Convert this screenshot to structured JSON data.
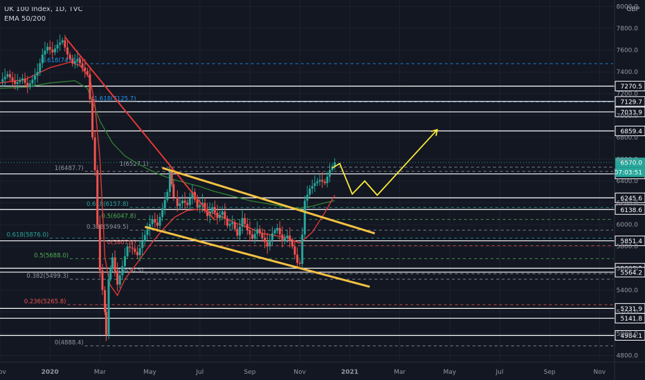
{
  "header": {
    "symbol_line": "UK 100 Index, 1D, TVC",
    "indicator_line": "EMA 50/200",
    "currency": "GBP"
  },
  "chart_data": {
    "type": "candlestick",
    "title": "UK 100 Index, 1D, TVC",
    "indicator": "EMA 50/200",
    "ylim": [
      4700,
      8100
    ],
    "grid": true,
    "y_ticks": [
      4800,
      5000,
      5200,
      5400,
      5600,
      5800,
      6000,
      6200,
      6400,
      6600,
      6800,
      7000,
      7200,
      7400,
      7600,
      7800,
      8000
    ],
    "x_ticks": [
      {
        "label": "Nov",
        "x": 0
      },
      {
        "label": "2020",
        "x": 2
      },
      {
        "label": "Mar",
        "x": 4
      },
      {
        "label": "May",
        "x": 6
      },
      {
        "label": "Jul",
        "x": 8
      },
      {
        "label": "Sep",
        "x": 10
      },
      {
        "label": "Nov",
        "x": 12
      },
      {
        "label": "2021",
        "x": 14
      },
      {
        "label": "Mar",
        "x": 16
      },
      {
        "label": "May",
        "x": 18
      },
      {
        "label": "Jul",
        "x": 20
      },
      {
        "label": "Sep",
        "x": 22
      },
      {
        "label": "Nov",
        "x": 24
      }
    ],
    "price_label_current": {
      "value": "6570.0",
      "color": "#26a69a"
    },
    "countdown_label": {
      "value": "07:03:51",
      "color": "#26a69a"
    },
    "horizontal_levels": [
      {
        "value": 7270.5,
        "label": "7270.5"
      },
      {
        "value": 7129.7,
        "label": "7129.7"
      },
      {
        "value": 7033.9,
        "label": "7033.9"
      },
      {
        "value": 6859.4,
        "label": "6859.4"
      },
      {
        "value": 6465.2,
        "label": "6465.2"
      },
      {
        "value": 6245.6,
        "label": "6245.6"
      },
      {
        "value": 6138.6,
        "label": "6138.6"
      },
      {
        "value": 5851.4,
        "label": "5851.4"
      },
      {
        "value": 5600.3,
        "label": "5600.3"
      },
      {
        "value": 5564.2,
        "label": "5564.2"
      },
      {
        "value": 5231.9,
        "label": "5231.9"
      },
      {
        "value": 5141.8,
        "label": "5141.8"
      },
      {
        "value": 4984.1,
        "label": "4984.1"
      }
    ],
    "fib_levels": [
      {
        "label": "1.618(7476.1)",
        "value": 7476.1,
        "color": "#2196f3",
        "x_start": 3.4
      },
      {
        "label": "1.618(7125.7)",
        "value": 7125.7,
        "color": "#2196f3",
        "x_start": 5.5
      },
      {
        "label": "1(6527.1)",
        "value": 6527.1,
        "color": "#9598a1",
        "x_start": 6.0
      },
      {
        "label": "1(6487.7)",
        "value": 6487.7,
        "color": "#9598a1",
        "x_start": 3.4
      },
      {
        "label": "0.618(6157.8)",
        "value": 6157.8,
        "color": "#26a69a",
        "x_start": 5.2
      },
      {
        "label": "0.5(6047.8)",
        "value": 6047.8,
        "color": "#4caf50",
        "x_start": 5.5
      },
      {
        "label": "0.382(5949.5)",
        "value": 5949.5,
        "color": "#9598a1",
        "x_start": 5.2
      },
      {
        "label": "0.618(5876.0)",
        "value": 5876.0,
        "color": "#26a69a",
        "x_start": 2.0
      },
      {
        "label": "0(5807.1)",
        "value": 5807.1,
        "color": "#ef5350",
        "x_start": 5.5
      },
      {
        "label": "0.5(5688.0)",
        "value": 5688.0,
        "color": "#4caf50",
        "x_start": 2.8
      },
      {
        "label": "0(5550.5)",
        "value": 5550.5,
        "color": "#9598a1",
        "x_start": 5.8
      },
      {
        "label": "0.382(5499.3)",
        "value": 5499.3,
        "color": "#9598a1",
        "x_start": 2.8
      },
      {
        "label": "0.236(5265.8)",
        "value": 5265.8,
        "color": "#ef5350",
        "x_start": 2.7
      },
      {
        "label": "0(4888.4)",
        "value": 4888.4,
        "color": "#9598a1",
        "x_start": 3.4
      }
    ],
    "close_series": [
      [
        0.0,
        7310
      ],
      [
        0.3,
        7380
      ],
      [
        0.6,
        7290
      ],
      [
        0.9,
        7340
      ],
      [
        1.1,
        7260
      ],
      [
        1.3,
        7330
      ],
      [
        1.5,
        7400
      ],
      [
        1.7,
        7560
      ],
      [
        1.9,
        7630
      ],
      [
        2.1,
        7580
      ],
      [
        2.3,
        7650
      ],
      [
        2.5,
        7690
      ],
      [
        2.7,
        7560
      ],
      [
        2.9,
        7480
      ],
      [
        3.1,
        7520
      ],
      [
        3.3,
        7440
      ],
      [
        3.5,
        7380
      ],
      [
        3.6,
        7150
      ],
      [
        3.7,
        6800
      ],
      [
        3.8,
        6500
      ],
      [
        3.9,
        6000
      ],
      [
        4.0,
        5580
      ],
      [
        4.1,
        5400
      ],
      [
        4.2,
        5200
      ],
      [
        4.25,
        4990
      ],
      [
        4.35,
        5500
      ],
      [
        4.5,
        5700
      ],
      [
        4.7,
        5450
      ],
      [
        4.9,
        5620
      ],
      [
        5.1,
        5800
      ],
      [
        5.3,
        5780
      ],
      [
        5.5,
        5720
      ],
      [
        5.7,
        5850
      ],
      [
        5.9,
        5960
      ],
      [
        6.1,
        6050
      ],
      [
        6.3,
        5990
      ],
      [
        6.5,
        6150
      ],
      [
        6.7,
        6300
      ],
      [
        6.8,
        6490
      ],
      [
        6.95,
        6250
      ],
      [
        7.1,
        6170
      ],
      [
        7.3,
        6220
      ],
      [
        7.5,
        6180
      ],
      [
        7.7,
        6300
      ],
      [
        7.9,
        6160
      ],
      [
        8.1,
        6200
      ],
      [
        8.3,
        6080
      ],
      [
        8.5,
        6160
      ],
      [
        8.7,
        6060
      ],
      [
        8.9,
        6120
      ],
      [
        9.1,
        5990
      ],
      [
        9.3,
        6020
      ],
      [
        9.5,
        5900
      ],
      [
        9.7,
        6060
      ],
      [
        9.9,
        5950
      ],
      [
        10.1,
        5870
      ],
      [
        10.3,
        5960
      ],
      [
        10.5,
        5880
      ],
      [
        10.7,
        5800
      ],
      [
        10.9,
        5920
      ],
      [
        11.1,
        5970
      ],
      [
        11.3,
        5850
      ],
      [
        11.5,
        5900
      ],
      [
        11.7,
        5800
      ],
      [
        11.9,
        5650
      ],
      [
        12.0,
        5640
      ],
      [
        12.1,
        5910
      ],
      [
        12.2,
        6220
      ],
      [
        12.4,
        6330
      ],
      [
        12.6,
        6380
      ],
      [
        12.8,
        6410
      ],
      [
        13.0,
        6380
      ],
      [
        13.2,
        6500
      ],
      [
        13.4,
        6570
      ]
    ],
    "ema_50": [
      [
        0.0,
        7300
      ],
      [
        1.0,
        7330
      ],
      [
        2.0,
        7440
      ],
      [
        2.8,
        7490
      ],
      [
        3.2,
        7460
      ],
      [
        3.6,
        7340
      ],
      [
        3.8,
        7100
      ],
      [
        4.0,
        6600
      ],
      [
        4.1,
        6150
      ],
      [
        4.2,
        5700
      ],
      [
        4.4,
        5450
      ],
      [
        4.7,
        5350
      ],
      [
        5.0,
        5500
      ],
      [
        5.5,
        5650
      ],
      [
        6.0,
        5810
      ],
      [
        6.5,
        5950
      ],
      [
        7.0,
        6070
      ],
      [
        7.5,
        6130
      ],
      [
        8.0,
        6140
      ],
      [
        8.5,
        6110
      ],
      [
        9.0,
        6060
      ],
      [
        9.5,
        6010
      ],
      [
        10.0,
        5970
      ],
      [
        10.5,
        5920
      ],
      [
        11.0,
        5900
      ],
      [
        11.5,
        5880
      ],
      [
        12.0,
        5830
      ],
      [
        12.5,
        5930
      ],
      [
        13.0,
        6110
      ],
      [
        13.4,
        6270
      ]
    ],
    "ema_200": [
      [
        0.0,
        7250
      ],
      [
        1.0,
        7260
      ],
      [
        2.0,
        7300
      ],
      [
        3.0,
        7320
      ],
      [
        3.5,
        7250
      ],
      [
        4.0,
        6950
      ],
      [
        4.5,
        6750
      ],
      [
        5.0,
        6630
      ],
      [
        5.5,
        6560
      ],
      [
        6.0,
        6500
      ],
      [
        6.5,
        6450
      ],
      [
        7.0,
        6410
      ],
      [
        7.5,
        6380
      ],
      [
        8.0,
        6350
      ],
      [
        8.5,
        6310
      ],
      [
        9.0,
        6280
      ],
      [
        9.5,
        6250
      ],
      [
        10.0,
        6220
      ],
      [
        10.5,
        6200
      ],
      [
        11.0,
        6180
      ],
      [
        11.5,
        6160
      ],
      [
        12.0,
        6150
      ],
      [
        12.5,
        6170
      ],
      [
        13.0,
        6200
      ],
      [
        13.4,
        6220
      ]
    ],
    "downtrend_line": [
      [
        2.6,
        7720
      ],
      [
        8.6,
        6040
      ]
    ],
    "channel_upper": [
      [
        6.5,
        6520
      ],
      [
        15.0,
        5920
      ]
    ],
    "channel_lower": [
      [
        5.8,
        5980
      ],
      [
        14.8,
        5430
      ]
    ],
    "projection_path": [
      [
        13.3,
        6520
      ],
      [
        13.6,
        6560
      ],
      [
        14.1,
        6280
      ],
      [
        14.6,
        6400
      ],
      [
        15.1,
        6270
      ],
      [
        17.5,
        6870
      ]
    ]
  }
}
